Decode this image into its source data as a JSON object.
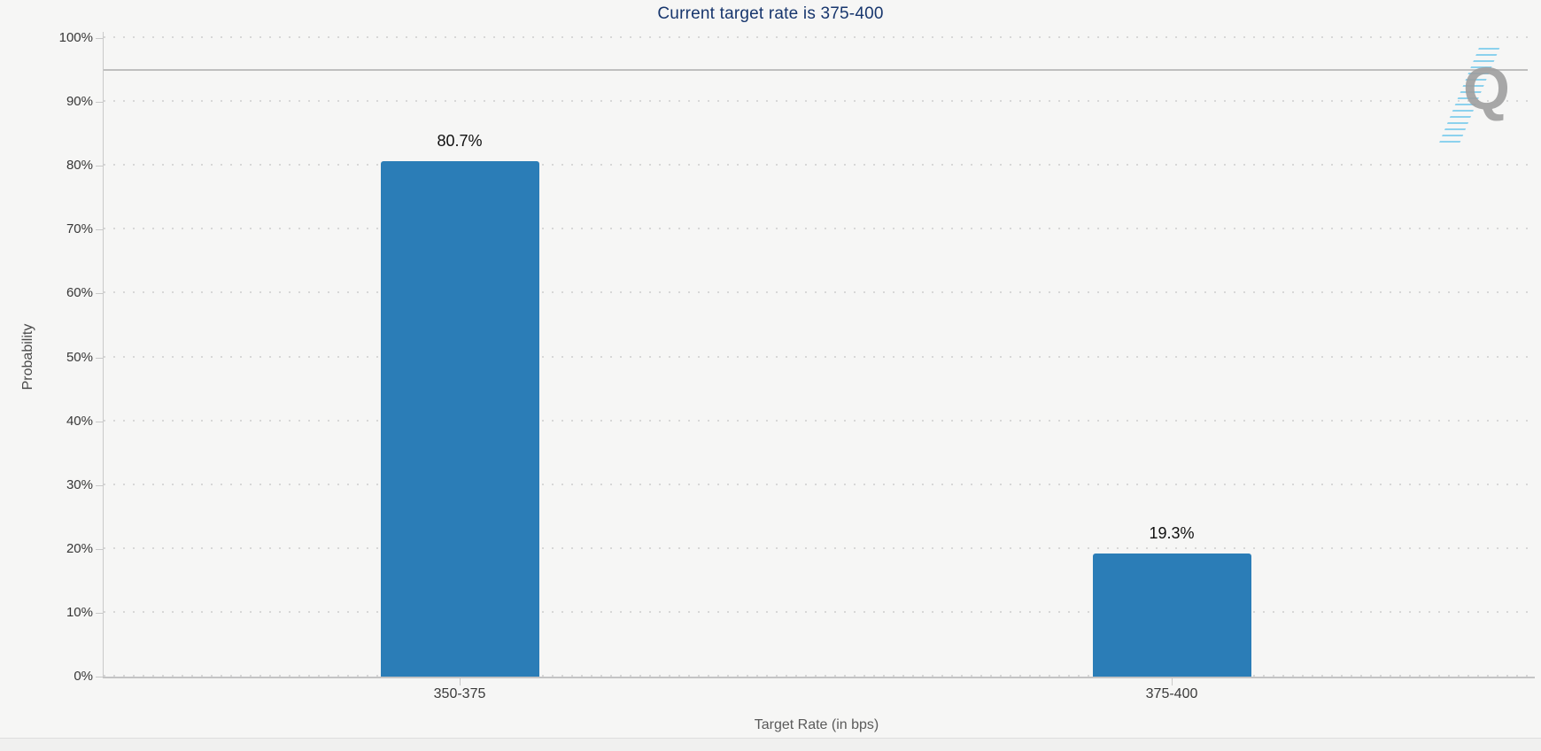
{
  "title": {
    "text": "Current target rate is 375-400",
    "color": "#17366d"
  },
  "chart_data": {
    "type": "bar",
    "title": "Current target rate is 375-400",
    "categories": [
      "350-375",
      "375-400"
    ],
    "values": [
      80.7,
      19.3
    ],
    "value_labels": [
      "80.7%",
      "19.3%"
    ],
    "xlabel": "Target Rate (in bps)",
    "ylabel": "Probability",
    "ylim": [
      0,
      100
    ],
    "ytick_labels": [
      "0%",
      "10%",
      "20%",
      "30%",
      "40%",
      "50%",
      "60%",
      "70%",
      "80%",
      "90%",
      "100%"
    ],
    "grid": "dotted-horizontal",
    "legend": "none",
    "reference_line_y": 95,
    "bar_color": "#2b7db7"
  },
  "watermark": {
    "letter": "Q"
  }
}
